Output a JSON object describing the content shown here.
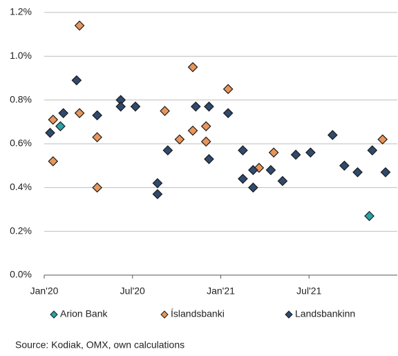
{
  "chart_data": {
    "type": "scatter",
    "source": "Source: Kodiak, OMX, own calculations",
    "xlim": [
      0,
      24
    ],
    "xticks": [
      {
        "value": 0,
        "label": "Jan'20"
      },
      {
        "value": 6,
        "label": "Jul'20"
      },
      {
        "value": 12,
        "label": "Jan'21"
      },
      {
        "value": 18,
        "label": "Jul'21"
      }
    ],
    "ylim": [
      0,
      1.2
    ],
    "yticks": [
      {
        "value": 0,
        "label": "0.0%"
      },
      {
        "value": 0.2,
        "label": "0.2%"
      },
      {
        "value": 0.4,
        "label": "0.4%"
      },
      {
        "value": 0.6,
        "label": "0.6%"
      },
      {
        "value": 0.8,
        "label": "0.8%"
      },
      {
        "value": 1.0,
        "label": "1.0%"
      },
      {
        "value": 1.2,
        "label": "1.2%"
      }
    ],
    "grid": true,
    "legend": "bottom",
    "series": [
      {
        "name": "Arion Bank",
        "color": "#2aa3a8",
        "x": [
          1.1,
          22.1
        ],
        "values": [
          0.68,
          0.27
        ]
      },
      {
        "name": "Íslandsbanki",
        "color": "#e8955a",
        "x": [
          0.6,
          0.6,
          2.4,
          2.4,
          3.6,
          3.6,
          8.2,
          9.2,
          10.1,
          10.1,
          11.0,
          11.0,
          12.5,
          14.6,
          15.6,
          23.0
        ],
        "values": [
          0.71,
          0.52,
          1.14,
          0.74,
          0.63,
          0.4,
          0.75,
          0.62,
          0.95,
          0.66,
          0.68,
          0.61,
          0.85,
          0.49,
          0.56,
          0.62
        ]
      },
      {
        "name": "Landsbankinn",
        "color": "#2f4a6e",
        "x": [
          0.4,
          1.3,
          2.2,
          3.6,
          5.2,
          5.2,
          6.2,
          7.7,
          7.7,
          8.4,
          10.3,
          11.2,
          11.2,
          12.5,
          13.5,
          13.5,
          14.2,
          14.2,
          15.4,
          16.2,
          17.1,
          18.1,
          19.6,
          20.4,
          21.3,
          22.3,
          23.2
        ],
        "values": [
          0.65,
          0.74,
          0.89,
          0.73,
          0.8,
          0.77,
          0.77,
          0.42,
          0.37,
          0.57,
          0.77,
          0.77,
          0.53,
          0.74,
          0.57,
          0.44,
          0.4,
          0.48,
          0.48,
          0.43,
          0.55,
          0.56,
          0.64,
          0.5,
          0.47,
          0.57,
          0.47
        ]
      }
    ]
  }
}
